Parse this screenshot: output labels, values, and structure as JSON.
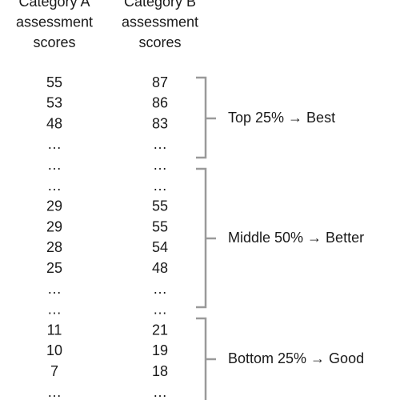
{
  "columns": [
    {
      "header": [
        "Category A",
        "assessment",
        "scores"
      ],
      "values": [
        55,
        53,
        48,
        "…",
        "…",
        "…",
        29,
        29,
        28,
        25,
        "…",
        "…",
        11,
        10,
        7,
        "…"
      ]
    },
    {
      "header": [
        "Category B",
        "assessment",
        "scores"
      ],
      "values": [
        87,
        86,
        83,
        "…",
        "…",
        "…",
        55,
        55,
        54,
        48,
        "…",
        "…",
        21,
        19,
        18,
        "…"
      ]
    }
  ],
  "groups": [
    {
      "label": "Top 25% → Best"
    },
    {
      "label": "Middle 50% → Better"
    },
    {
      "label": "Bottom 25% → Good"
    }
  ]
}
